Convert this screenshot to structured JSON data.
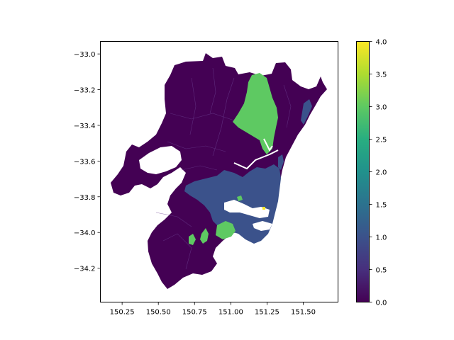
{
  "chart_data": {
    "type": "heatmap",
    "title": "",
    "xlabel": "",
    "ylabel": "",
    "xlim": [
      150.1,
      151.74
    ],
    "ylim": [
      -34.39,
      -32.93
    ],
    "x_ticks": [
      150.25,
      150.5,
      150.75,
      151.0,
      151.25,
      151.5
    ],
    "x_tick_labels": [
      "150.25",
      "150.50",
      "150.75",
      "151.00",
      "151.25",
      "151.50"
    ],
    "y_ticks": [
      -33.0,
      -33.2,
      -33.4,
      -33.6,
      -33.8,
      -34.0,
      -34.2
    ],
    "y_tick_labels": [
      "−33.0",
      "−33.2",
      "−33.4",
      "−33.6",
      "−33.8",
      "−34.0",
      "−34.2"
    ],
    "colorbar": {
      "colormap": "viridis",
      "range": [
        0.0,
        4.0
      ],
      "ticks": [
        0.0,
        0.5,
        1.0,
        1.5,
        2.0,
        2.5,
        3.0,
        3.5,
        4.0
      ],
      "tick_labels": [
        "0.0",
        "0.5",
        "1.0",
        "1.5",
        "2.0",
        "2.5",
        "3.0",
        "3.5",
        "4.0"
      ]
    },
    "regions": [
      {
        "name": "",
        "value": 0,
        "color": "#440154"
      },
      {
        "name": "",
        "value": 1,
        "color": "#3b528b"
      },
      {
        "name": "",
        "value": 3,
        "color": "#5ec962"
      },
      {
        "name": "",
        "value": 4,
        "color": "#fde725"
      }
    ],
    "grid": false
  }
}
